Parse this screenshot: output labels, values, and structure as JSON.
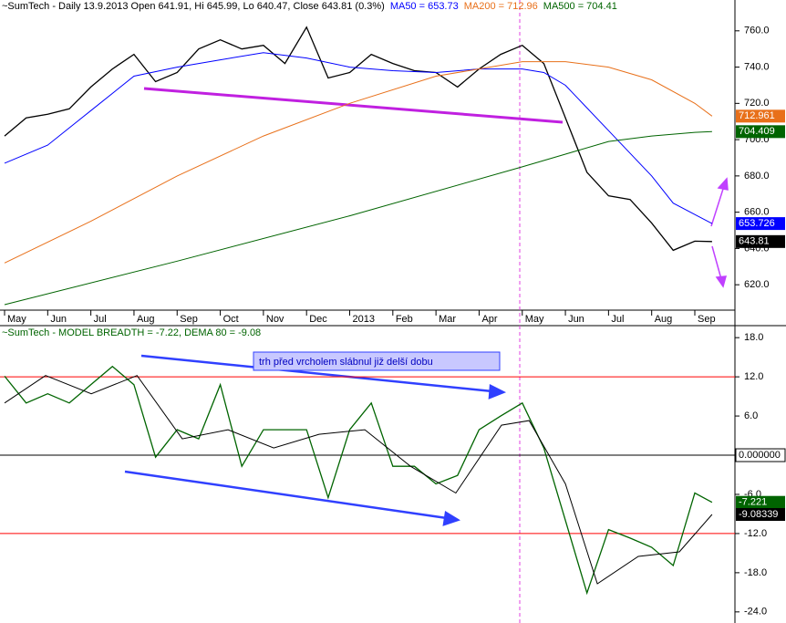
{
  "chart_data": [
    {
      "type": "line",
      "header": [
        {
          "text": "~SumTech - Daily 13.9.2013 Open 641.91, Hi 645.99, Lo 640.47, Close 643.81 (0.3%)",
          "color": "#000000"
        },
        {
          "text": "MA50 = 653.73",
          "color": "#0000ff"
        },
        {
          "text": "MA200 = 712.96",
          "color": "#e8701a"
        },
        {
          "text": "MA500 = 704.41",
          "color": "#006400"
        }
      ],
      "xlim": [
        -0.106,
        16.93
      ],
      "xticks": [
        {
          "value": 0,
          "label": "May"
        },
        {
          "value": 1,
          "label": "Jun"
        },
        {
          "value": 2,
          "label": "Jul"
        },
        {
          "value": 3,
          "label": "Aug"
        },
        {
          "value": 4,
          "label": "Sep"
        },
        {
          "value": 5,
          "label": "Oct"
        },
        {
          "value": 6,
          "label": "Nov"
        },
        {
          "value": 7,
          "label": "Dec"
        },
        {
          "value": 8,
          "label": "2013"
        },
        {
          "value": 9,
          "label": "Feb"
        },
        {
          "value": 10,
          "label": "Mar"
        },
        {
          "value": 11,
          "label": "Apr"
        },
        {
          "value": 12,
          "label": "May"
        },
        {
          "value": 13,
          "label": "Jun"
        },
        {
          "value": 14,
          "label": "Jul"
        },
        {
          "value": 15,
          "label": "Aug"
        },
        {
          "value": 16,
          "label": "Sep"
        }
      ],
      "ylim": [
        606,
        777
      ],
      "yticks": [
        {
          "value": 620,
          "label": "620.0"
        },
        {
          "value": 640,
          "label": "640.0"
        },
        {
          "value": 660,
          "label": "660.0"
        },
        {
          "value": 680,
          "label": "680.0"
        },
        {
          "value": 700,
          "label": "700.0"
        },
        {
          "value": 720,
          "label": "720.0"
        },
        {
          "value": 740,
          "label": "740.0"
        },
        {
          "value": 760,
          "label": "760.0"
        }
      ],
      "grid": false,
      "series": [
        {
          "color": "#000000",
          "end_label": "643.81",
          "x": [
            0,
            0.5,
            1,
            1.5,
            2,
            2.5,
            3,
            3.5,
            4,
            4.5,
            5,
            5.5,
            6,
            6.5,
            7,
            7.5,
            8,
            8.5,
            9,
            9.5,
            10,
            10.5,
            11,
            11.5,
            12,
            12.5,
            13,
            13.5,
            14,
            14.5,
            15,
            15.5,
            16,
            16.4
          ],
          "values": [
            702,
            712,
            714,
            717,
            729,
            739,
            747,
            732,
            737,
            750,
            755,
            750,
            752,
            742,
            762,
            734,
            737,
            747,
            742,
            738,
            737,
            729,
            739,
            747,
            752,
            742,
            712,
            682,
            669,
            667,
            654,
            639,
            644,
            643.81
          ]
        },
        {
          "color": "#0000ff",
          "end_label": "653.726",
          "x": [
            0,
            1,
            2,
            3,
            4,
            5,
            6,
            7,
            8,
            9,
            10,
            11,
            12,
            12.5,
            13,
            14,
            15,
            15.5,
            16.4
          ],
          "values": [
            687,
            697,
            716,
            735,
            740,
            744,
            748,
            745,
            740,
            738,
            737,
            739,
            739,
            737,
            730,
            705,
            680,
            665,
            653.73
          ]
        },
        {
          "color": "#e8701a",
          "end_label": "712.961",
          "x": [
            0,
            2,
            4,
            6,
            8,
            10,
            12,
            13,
            14,
            15,
            16,
            16.4
          ],
          "values": [
            632,
            655,
            680,
            702,
            720,
            735,
            743,
            743,
            740,
            733,
            720,
            712.96
          ]
        },
        {
          "color": "#006400",
          "end_label": "704.409",
          "x": [
            0,
            4,
            8,
            12,
            13,
            14,
            15,
            16,
            16.4
          ],
          "values": [
            609,
            633,
            658,
            685,
            692,
            699,
            702,
            704,
            704.41
          ]
        }
      ]
    },
    {
      "type": "line",
      "header": [
        {
          "text": "~SumTech - MODEL BREADTH = -7.22, DEMA 80 = -9.08",
          "color": "#006400"
        }
      ],
      "annotation": "trh před vrcholem slábnul již delší dobu",
      "xlim": [
        -0.106,
        16.93
      ],
      "ylim": [
        -25.7,
        19.7
      ],
      "yticks": [
        {
          "value": 18,
          "label": "18.0"
        },
        {
          "value": 12,
          "label": "12.0"
        },
        {
          "value": 6,
          "label": "6.0"
        },
        {
          "value": 0,
          "label": "0.0"
        },
        {
          "value": -6,
          "label": "-6.0"
        },
        {
          "value": -12,
          "label": "-12.0"
        },
        {
          "value": -18,
          "label": "-18.0"
        },
        {
          "value": -24,
          "label": "-24.0"
        }
      ],
      "grid": false,
      "hlines": [
        {
          "value": 12,
          "color": "#ff0000"
        },
        {
          "value": 0,
          "color": "#000000",
          "label": "0.000000"
        },
        {
          "value": -12,
          "color": "#ff0000"
        }
      ],
      "series": [
        {
          "color": "#006400",
          "end_label": "-7.221",
          "x": [
            0,
            0.5,
            1,
            1.5,
            2,
            2.5,
            3,
            3.5,
            4,
            4.5,
            5,
            5.5,
            6,
            6.5,
            7,
            7.5,
            8,
            8.5,
            9,
            9.5,
            10,
            10.5,
            11,
            11.5,
            12,
            12.5,
            13,
            13.5,
            14,
            14.5,
            15,
            15.5,
            16,
            16.4
          ],
          "values": [
            12.1,
            8.0,
            9.4,
            8.0,
            10.8,
            13.6,
            10.8,
            -0.3,
            3.9,
            2.5,
            10.8,
            -1.7,
            3.9,
            3.9,
            3.9,
            -6.5,
            3.9,
            8.0,
            -1.7,
            -1.7,
            -4.4,
            -3.1,
            3.9,
            6.0,
            8.0,
            1.1,
            -10.0,
            -21.1,
            -11.4,
            -12.7,
            -14.1,
            -16.9,
            -5.8,
            -7.22
          ]
        },
        {
          "color": "#000000",
          "end_label": "-9.08339",
          "x": [
            0,
            0.95,
            2.01,
            3.07,
            4.12,
            5.18,
            6.24,
            7.29,
            8.35,
            9.41,
            10.46,
            11.52,
            12.16,
            13.0,
            13.74,
            14.69,
            15.64,
            16.4
          ],
          "values": [
            8.0,
            12.2,
            9.4,
            12.2,
            2.5,
            3.9,
            1.1,
            3.2,
            3.9,
            -1.7,
            -5.8,
            4.6,
            5.3,
            -4.4,
            -19.7,
            -15.5,
            -14.8,
            -9.08
          ]
        }
      ]
    }
  ]
}
